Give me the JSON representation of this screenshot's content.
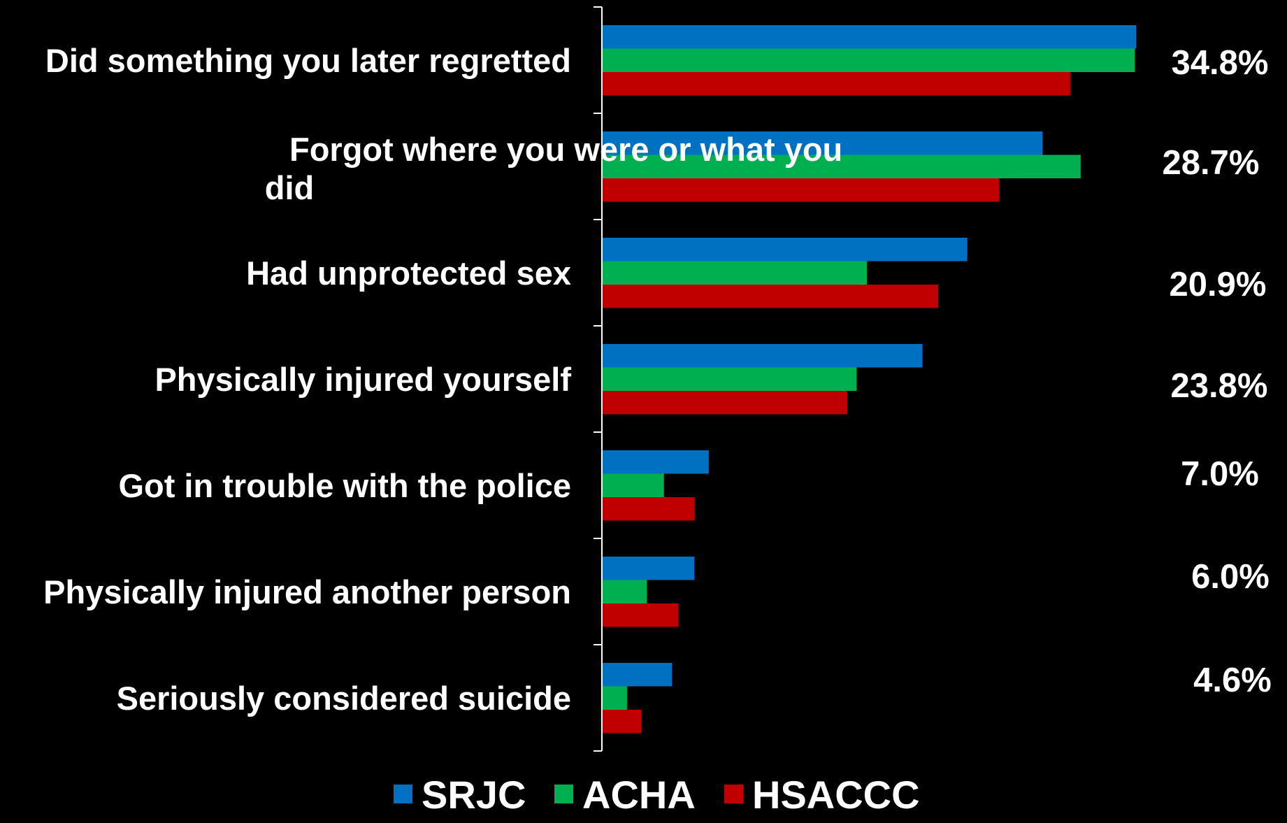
{
  "chart_data": {
    "type": "bar",
    "orientation": "horizontal",
    "categories": [
      [
        "Did something you later regretted"
      ],
      [
        "Forgot where you were or what you",
        "did"
      ],
      [
        "Had unprotected sex"
      ],
      [
        "Physically injured yourself"
      ],
      [
        "Got in trouble with the police"
      ],
      [
        "Physically injured another person"
      ],
      [
        "Seriously considered suicide"
      ]
    ],
    "series": [
      {
        "name": "SRJC",
        "color": "#0070C0",
        "values": [
          40.5,
          33.4,
          27.7,
          24.3,
          8.1,
          7.0,
          5.3
        ]
      },
      {
        "name": "ACHA",
        "color": "#00B050",
        "values": [
          40.4,
          36.3,
          20.1,
          19.3,
          4.7,
          3.4,
          1.9
        ]
      },
      {
        "name": "HSACCC",
        "color": "#C00000",
        "values": [
          35.5,
          30.1,
          25.5,
          18.6,
          7.0,
          5.8,
          3.0
        ]
      }
    ],
    "value_labels": [
      "34.8%",
      "28.7%",
      "20.9%",
      "23.8%",
      "7.0%",
      "6.0%",
      "4.6%"
    ],
    "xlim": [
      0,
      45
    ],
    "axis_color": "#ffffff",
    "background": "#000000",
    "grid": false,
    "legend_position": "bottom-center",
    "title": "",
    "xlabel": "",
    "ylabel": ""
  }
}
